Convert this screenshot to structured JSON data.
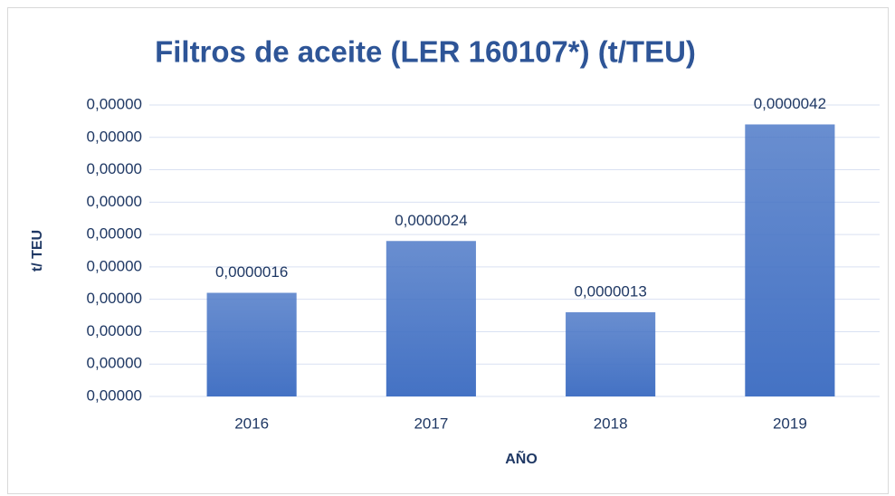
{
  "chart_data": {
    "type": "bar",
    "title": "Filtros de aceite (LER 160107*) (t/TEU)",
    "x_label": "AÑO",
    "y_label": "t/ TEU",
    "categories": [
      "2016",
      "2017",
      "2018",
      "2019"
    ],
    "values": [
      1.6e-06,
      2.4e-06,
      1.3e-06,
      4.2e-06
    ],
    "value_labels": [
      "0,0000016",
      "0,0000024",
      "0,0000013",
      "0,0000042"
    ],
    "color": "#4472c4",
    "ylim": [
      0,
      4.5e-06
    ],
    "yticks": [
      {
        "value": 0,
        "label": "0,00000"
      },
      {
        "value": 5e-07,
        "label": "0,00000"
      },
      {
        "value": 1e-06,
        "label": "0,00000"
      },
      {
        "value": 1.5e-06,
        "label": "0,00000"
      },
      {
        "value": 2e-06,
        "label": "0,00000"
      },
      {
        "value": 2.5e-06,
        "label": "0,00000"
      },
      {
        "value": 3e-06,
        "label": "0,00000"
      },
      {
        "value": 3.5e-06,
        "label": "0,00000"
      },
      {
        "value": 4e-06,
        "label": "0,00000"
      },
      {
        "value": 4.5e-06,
        "label": "0,00000"
      }
    ],
    "grid": true
  }
}
